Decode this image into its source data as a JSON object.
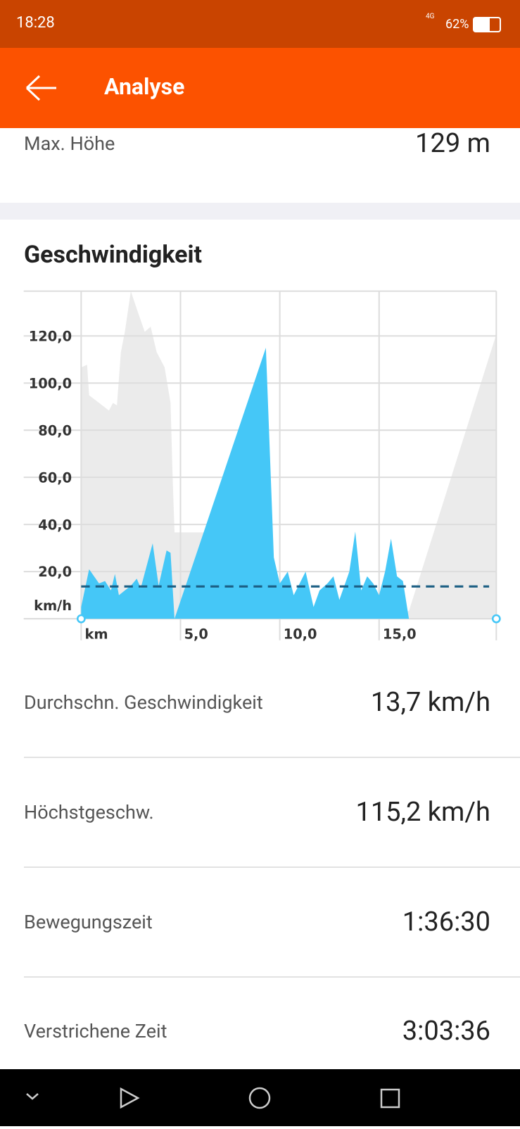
{
  "status_bar": {
    "time": "18:28",
    "network": "4G",
    "battery": "62%"
  },
  "app_bar": {
    "title": "Analyse"
  },
  "summary_rows": [
    {
      "label": "Max. Höhe",
      "value": "129 m"
    }
  ],
  "chart_data": {
    "type": "area",
    "title": "Geschwindigkeit",
    "y_label": "km/h",
    "xlim": [
      0,
      20.9
    ],
    "xticks": [
      {
        "value": 0,
        "label": "km"
      },
      {
        "value": 5,
        "label": "5,0"
      },
      {
        "value": 10,
        "label": "10,0"
      },
      {
        "value": 15,
        "label": "15,0"
      }
    ],
    "ylim": [
      0,
      139
    ],
    "yticks": [
      {
        "value": 20,
        "label": "20,0"
      },
      {
        "value": 40,
        "label": "40,0"
      },
      {
        "value": 60,
        "label": "60,0"
      },
      {
        "value": 80,
        "label": "80,0"
      },
      {
        "value": 100,
        "label": "100,0"
      },
      {
        "value": 120,
        "label": "120,0"
      }
    ],
    "y2lim": [
      0,
      129
    ],
    "grid": true,
    "average": 13.7,
    "average_color": "#1b5e83",
    "series": [
      {
        "color": "#ebebeb",
        "axis": "y2",
        "x": [
          0,
          0.3,
          0.4,
          0.9,
          1.4,
          1.6,
          1.8,
          2.0,
          2.2,
          2.5,
          2.8,
          3.2,
          3.5,
          3.8,
          4.2,
          4.5,
          4.6,
          4.7,
          9.3,
          9.4,
          16.5,
          20.9
        ],
        "values": [
          99,
          100,
          88,
          85,
          82,
          85,
          84,
          105,
          113,
          129,
          122,
          113,
          115,
          105,
          99,
          85,
          57,
          34,
          34,
          3,
          3,
          112
        ]
      },
      {
        "color": "#45c7f7",
        "x": [
          0,
          0.4,
          0.9,
          1.2,
          1.5,
          1.7,
          1.9,
          2.2,
          2.5,
          2.8,
          3.0,
          3.6,
          3.9,
          4.3,
          4.5,
          4.7,
          9.3,
          9.7,
          10.0,
          10.4,
          10.7,
          11.3,
          11.7,
          12.0,
          12.4,
          12.7,
          13.0,
          13.5,
          13.8,
          14.1,
          14.4,
          14.7,
          15.0,
          15.3,
          15.6,
          15.9,
          16.2,
          16.5
        ],
        "values": [
          5,
          21,
          15,
          16,
          12,
          19,
          10,
          12,
          14,
          17,
          13,
          32,
          14,
          29,
          28,
          0,
          115,
          26,
          15,
          20,
          10,
          20,
          5,
          12,
          15,
          18,
          8,
          20,
          37,
          12,
          18,
          15,
          10,
          20,
          34,
          18,
          16,
          0
        ]
      }
    ]
  },
  "stats": [
    {
      "label": "Durchschn. Geschwindigkeit",
      "value": "13,7 km/h"
    },
    {
      "label": "Höchstgeschw.",
      "value": "115,2 km/h"
    },
    {
      "label": "Bewegungszeit",
      "value": "1:36:30"
    },
    {
      "label": "Verstrichene Zeit",
      "value": "3:03:36"
    }
  ]
}
